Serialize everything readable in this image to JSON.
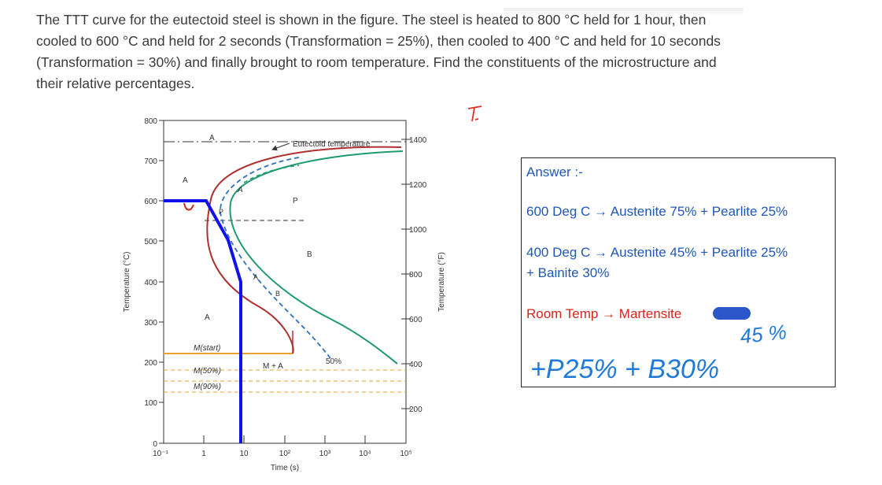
{
  "question": {
    "text": "The TTT curve for the eutectoid steel is shown in the figure. The steel is heated to 800 °C held for 1 hour, then cooled to 600 °C and held for 2 seconds (Transformation = 25%), then cooled to 400 °C and held for 10 seconds (Transformation = 30%) and finally brought to room temperature. Find the constituents of the microstructure and their relative percentages."
  },
  "chart": {
    "y_left_label": "Temperature (°C)",
    "y_right_label": "Temperature (°F)",
    "x_label": "Time (s)",
    "y_left_ticks": [
      "800",
      "700",
      "600",
      "500",
      "400",
      "300",
      "200",
      "100",
      "0"
    ],
    "y_right_ticks": [
      "1400",
      "1200",
      "1000",
      "800",
      "600",
      "400",
      "200"
    ],
    "x_ticks": [
      "10⁻¹",
      "1",
      "10",
      "10²",
      "10³",
      "10⁴",
      "10⁵"
    ],
    "eutectoid_label": "Eutectoid temperature",
    "region_labels": {
      "a_top": "A",
      "a_left": "A",
      "a_low": "A",
      "p_curve": "P",
      "p_region": "P",
      "b_region": "B",
      "a_arrow": "A",
      "b_arrow": "B",
      "m_start": "M(start)",
      "m_50": "M(50%)",
      "m_90": "M(90%)",
      "m_plus_a": "M + A",
      "fifty": "50%"
    },
    "colors": {
      "start_curve": "#b03030",
      "finish_curve": "#1f9a6e",
      "path": "#1111ee",
      "mstart_line": "#e8a030",
      "dashed_mid": "#3070c0",
      "marker_red": "#dd2222"
    }
  },
  "chart_data": {
    "type": "line",
    "title": "",
    "xlabel": "Time (s)",
    "ylabel": "Temperature (°C)",
    "xscale": "log",
    "xlim": [
      0.1,
      100000
    ],
    "ylim": [
      0,
      800
    ],
    "series": [
      {
        "name": "",
        "points": [
          [
            0.1,
            600
          ],
          [
            1,
            600
          ],
          [
            1,
            560
          ],
          [
            2,
            560
          ],
          [
            10,
            400
          ],
          [
            10,
            0
          ]
        ]
      }
    ],
    "reference_lines": {
      "eutectoid_temperature_C": 727,
      "M_start_C": 220,
      "M_50_C": 190,
      "M_90_C": 160
    }
  },
  "answer": {
    "title": "Answer :-",
    "line1": "600 Deg C → Austenite 75% + Pearlite 25%",
    "line2": "400 Deg C → Austenite 45% + Pearlite 25%",
    "line3": "+ Bainite 30%",
    "line4": "Room Temp → Martensite"
  },
  "handwriting": {
    "pct": "45 %",
    "sum": "+P25% + B30%"
  }
}
